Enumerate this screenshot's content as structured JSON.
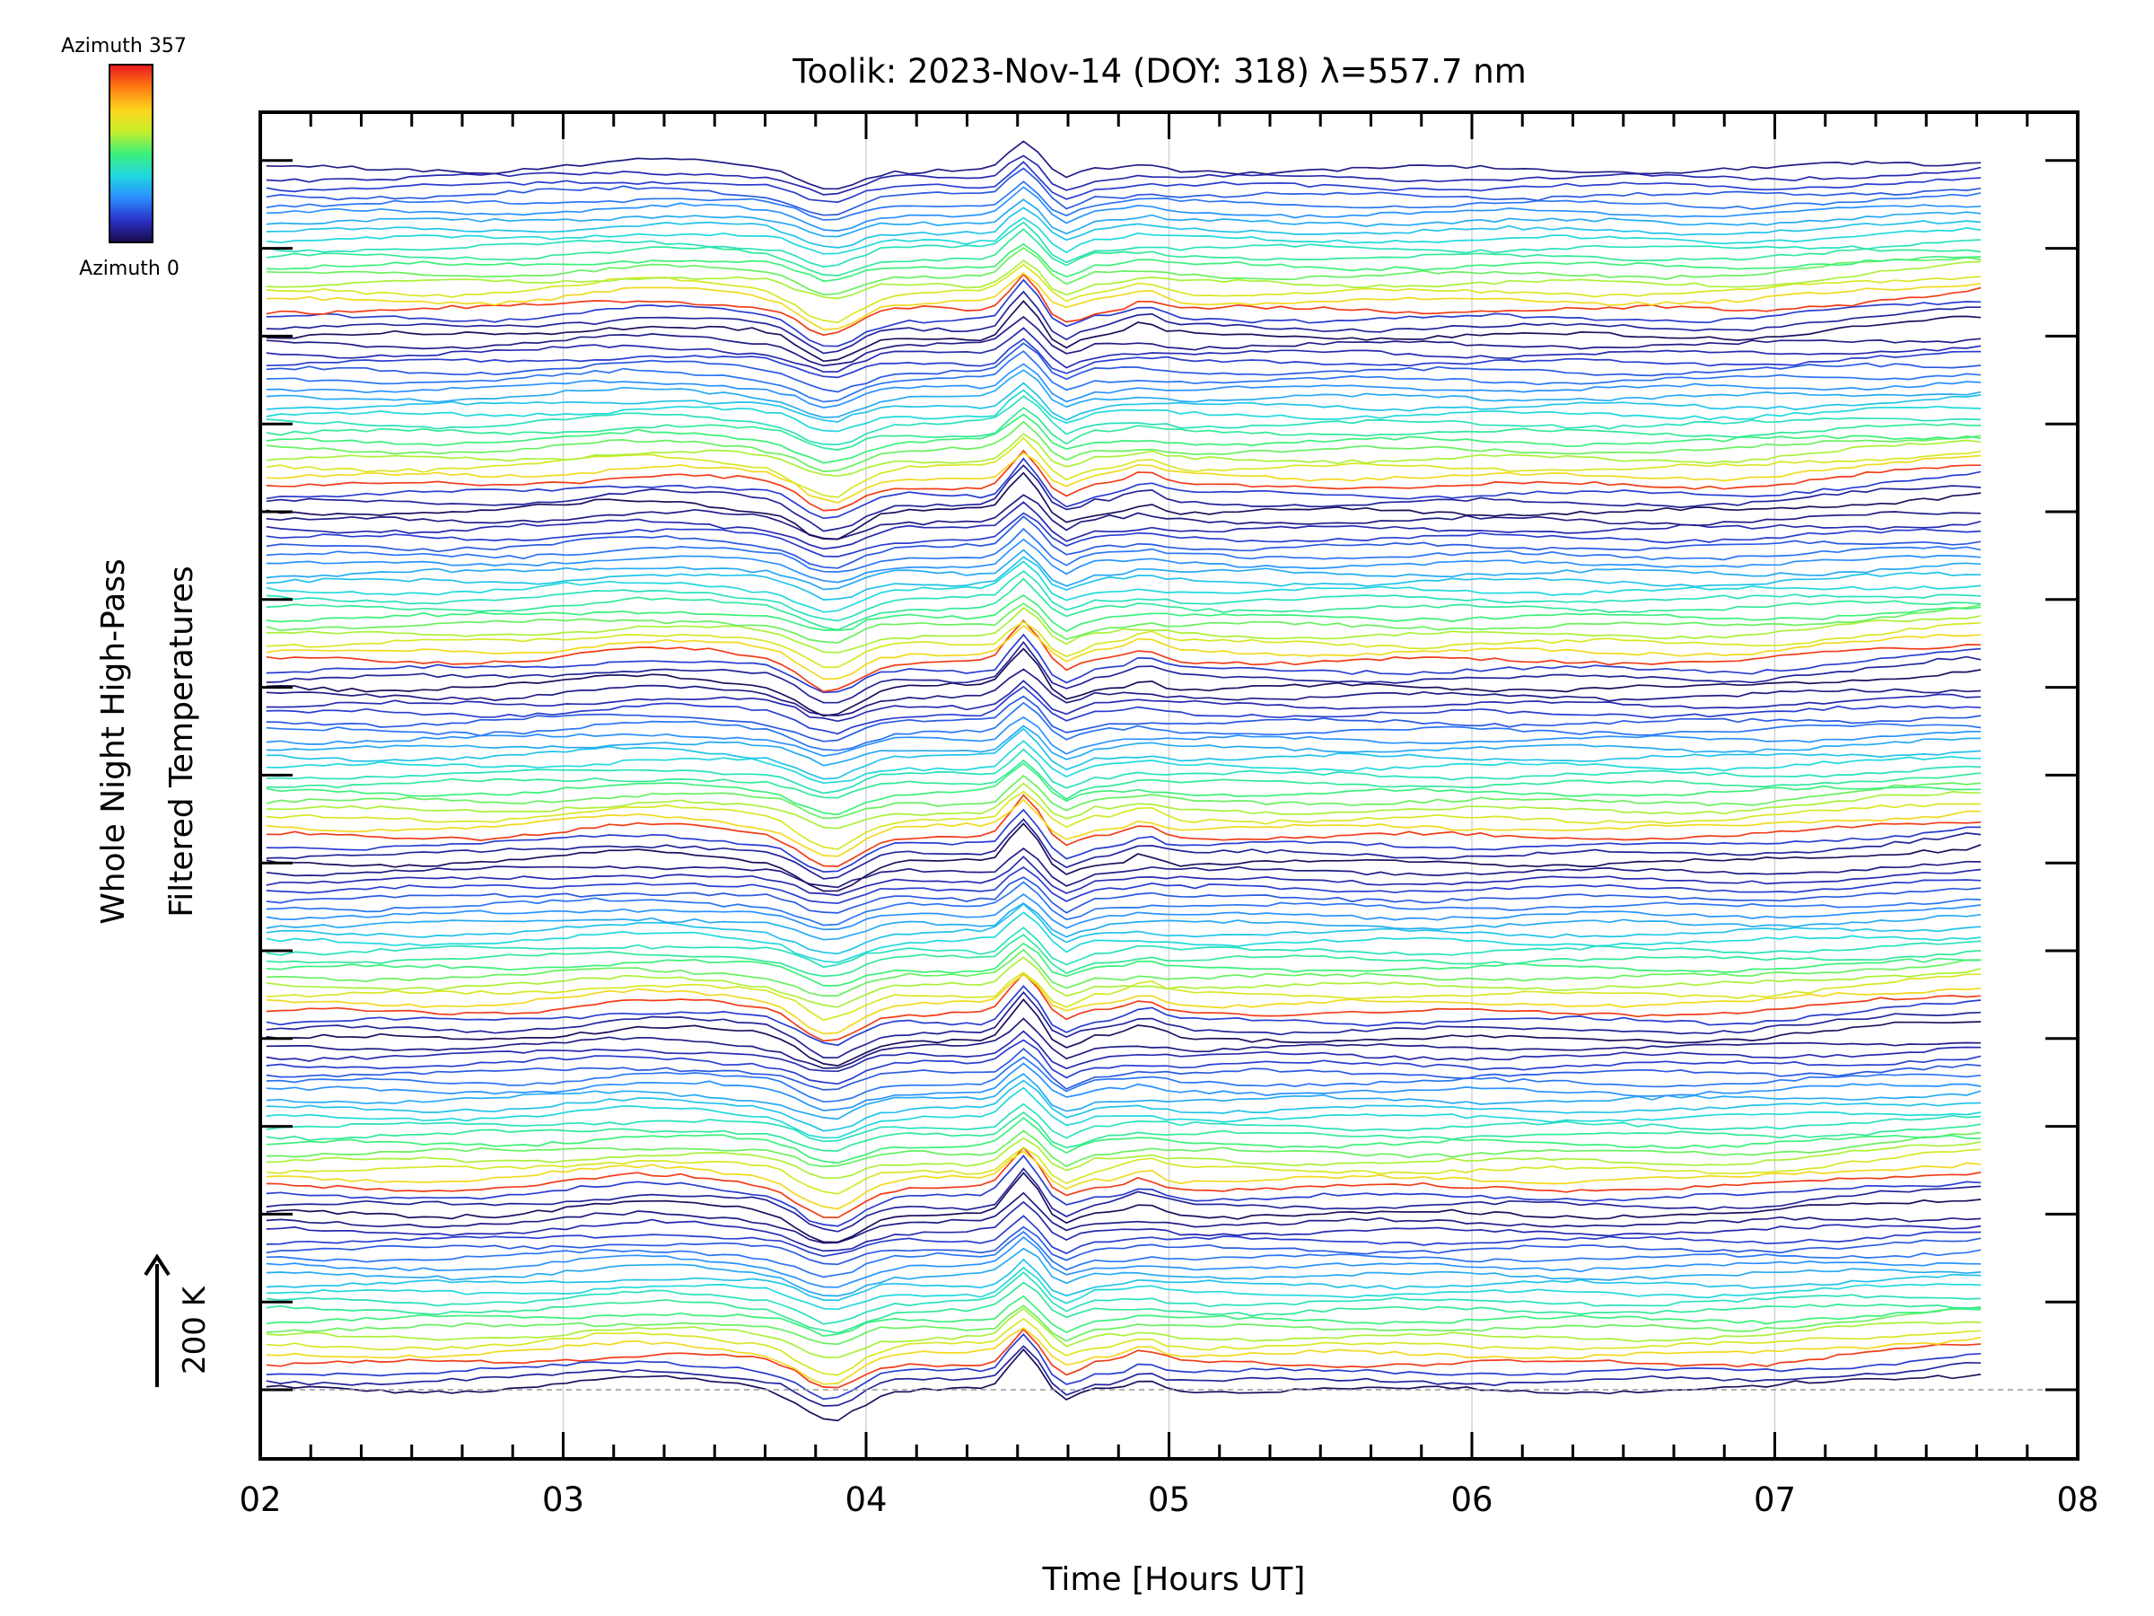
{
  "chart_data": {
    "type": "line",
    "title": "Toolik: 2023-Nov-14 (DOY: 318) λ=557.7 nm",
    "xlabel": "Time [Hours UT]",
    "ylabel_line1": "Whole Night High-Pass",
    "ylabel_line2": "Filtered Temperatures",
    "scale_label": "200 K",
    "xlim": [
      2,
      8
    ],
    "x_tick_labels": [
      "02",
      "03",
      "04",
      "05",
      "06",
      "07",
      "08"
    ],
    "data_x_range": [
      2.02,
      7.68
    ],
    "grid": "vertical",
    "legend": {
      "position": "top-left",
      "type": "colorbar",
      "top_label": "Azimuth 357",
      "bottom_label": "Azimuth 0",
      "colors": [
        "#1a0a4a",
        "#2a32c8",
        "#2b8cff",
        "#20d8e0",
        "#3cf07a",
        "#c8f02a",
        "#ffd21e",
        "#ff7a12",
        "#e8141e"
      ]
    },
    "series_count": 140,
    "stack": {
      "bands": 7,
      "lines_per_band": 20,
      "band_spacing_K": 200
    },
    "events": [
      {
        "x": 3.85,
        "kind": "dip"
      },
      {
        "x": 4.52,
        "kind": "peak"
      },
      {
        "x": 4.92,
        "kind": "peak"
      }
    ]
  }
}
